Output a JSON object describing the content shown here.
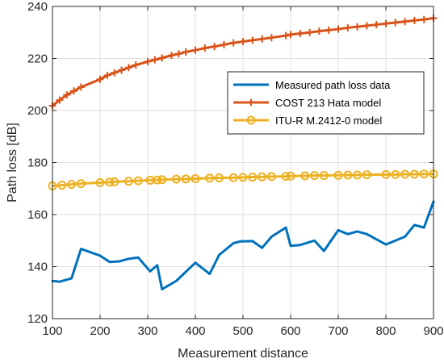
{
  "chart_data": {
    "type": "line",
    "title": "",
    "xlabel": "Measurement distance",
    "ylabel": "Path  loss [dB]",
    "xlim": [
      100,
      900
    ],
    "ylim": [
      120,
      240
    ],
    "xticks": [
      100,
      200,
      300,
      400,
      500,
      600,
      700,
      800,
      900
    ],
    "yticks": [
      120,
      140,
      160,
      180,
      200,
      220,
      240
    ],
    "grid": true,
    "legend_position": "top-right",
    "series": [
      {
        "name": "Measured path loss data",
        "color": "#0072BD",
        "marker": "none",
        "x": [
          100,
          115,
          140,
          160,
          200,
          220,
          240,
          260,
          280,
          305,
          320,
          330,
          360,
          400,
          430,
          450,
          480,
          495,
          520,
          540,
          560,
          590,
          600,
          620,
          650,
          670,
          700,
          720,
          740,
          760,
          800,
          840,
          860,
          880,
          900
        ],
        "y": [
          134.5,
          134.2,
          135.5,
          146.8,
          144.2,
          141.8,
          142.0,
          143.0,
          143.5,
          138.2,
          140.5,
          131.3,
          134.5,
          141.5,
          137.2,
          144.5,
          149.0,
          149.7,
          149.8,
          147.2,
          151.5,
          155.0,
          148.0,
          148.3,
          150.0,
          146.0,
          154.0,
          152.5,
          153.5,
          152.5,
          148.5,
          151.5,
          156.0,
          155.0,
          165.0
        ]
      },
      {
        "name": "COST 213 Hata model",
        "color": "#D95319",
        "marker": "plus",
        "x": [
          100,
          115,
          130,
          145,
          160,
          200,
          215,
          230,
          245,
          260,
          275,
          300,
          315,
          330,
          350,
          365,
          380,
          400,
          420,
          440,
          460,
          480,
          500,
          520,
          540,
          560,
          590,
          600,
          620,
          640,
          660,
          680,
          700,
          720,
          740,
          760,
          780,
          800,
          820,
          840,
          860,
          880,
          900
        ],
        "y": [
          201.8,
          204.0,
          206.0,
          207.5,
          209.0,
          212.0,
          213.5,
          214.5,
          215.5,
          216.5,
          217.5,
          218.8,
          219.5,
          220.2,
          221.2,
          221.8,
          222.5,
          223.2,
          224.0,
          224.6,
          225.3,
          226.0,
          226.5,
          227.0,
          227.5,
          228.0,
          228.8,
          229.2,
          229.6,
          230.0,
          230.5,
          230.9,
          231.3,
          231.8,
          232.2,
          232.6,
          233.0,
          233.4,
          233.8,
          234.2,
          234.6,
          235.0,
          235.5
        ]
      },
      {
        "name": "ITU-R M.2412-0 model",
        "color": "#EDB120",
        "marker": "circle",
        "x": [
          100,
          120,
          140,
          160,
          200,
          220,
          230,
          260,
          280,
          305,
          320,
          330,
          360,
          380,
          400,
          430,
          450,
          480,
          500,
          520,
          540,
          560,
          590,
          600,
          630,
          650,
          670,
          700,
          720,
          740,
          760,
          800,
          820,
          840,
          860,
          880,
          900
        ],
        "y": [
          171.0,
          171.3,
          171.6,
          171.9,
          172.3,
          172.5,
          172.6,
          172.8,
          173.0,
          173.2,
          173.3,
          173.4,
          173.6,
          173.7,
          173.8,
          174.0,
          174.1,
          174.2,
          174.3,
          174.4,
          174.5,
          174.6,
          174.7,
          174.8,
          174.9,
          175.0,
          175.0,
          175.1,
          175.2,
          175.2,
          175.3,
          175.4,
          175.4,
          175.5,
          175.5,
          175.6,
          175.6
        ]
      }
    ]
  }
}
